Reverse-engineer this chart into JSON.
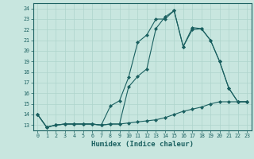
{
  "title": "",
  "xlabel": "Humidex (Indice chaleur)",
  "ylabel": "",
  "bg_color": "#c8e6df",
  "grid_color": "#aed4cc",
  "line_color": "#1a6060",
  "xlim": [
    -0.5,
    23.5
  ],
  "ylim": [
    12.5,
    24.5
  ],
  "xticks": [
    0,
    1,
    2,
    3,
    4,
    5,
    6,
    7,
    8,
    9,
    10,
    11,
    12,
    13,
    14,
    15,
    16,
    17,
    18,
    19,
    20,
    21,
    22,
    23
  ],
  "yticks": [
    13,
    14,
    15,
    16,
    17,
    18,
    19,
    20,
    21,
    22,
    23,
    24
  ],
  "series": [
    [
      14.0,
      12.8,
      13.0,
      13.1,
      13.1,
      13.1,
      13.1,
      13.0,
      14.8,
      15.3,
      17.5,
      20.8,
      21.5,
      23.0,
      23.0,
      23.8,
      20.4,
      22.0,
      22.1,
      21.0,
      19.0,
      16.5,
      15.2,
      15.2
    ],
    [
      14.0,
      12.8,
      13.0,
      13.1,
      13.1,
      13.1,
      13.1,
      13.0,
      13.1,
      13.1,
      16.6,
      17.6,
      18.3,
      22.1,
      23.2,
      23.8,
      20.4,
      22.2,
      22.1,
      21.0,
      19.0,
      16.5,
      15.2,
      15.2
    ],
    [
      14.0,
      12.8,
      13.0,
      13.1,
      13.1,
      13.1,
      13.1,
      13.0,
      13.1,
      13.1,
      13.2,
      13.3,
      13.4,
      13.5,
      13.7,
      14.0,
      14.3,
      14.5,
      14.7,
      15.0,
      15.2,
      15.2,
      15.2,
      15.2
    ]
  ],
  "marker": "D",
  "markersize": 2.0,
  "linewidth": 0.8,
  "xlabel_fontsize": 6.5,
  "tick_fontsize": 4.8
}
